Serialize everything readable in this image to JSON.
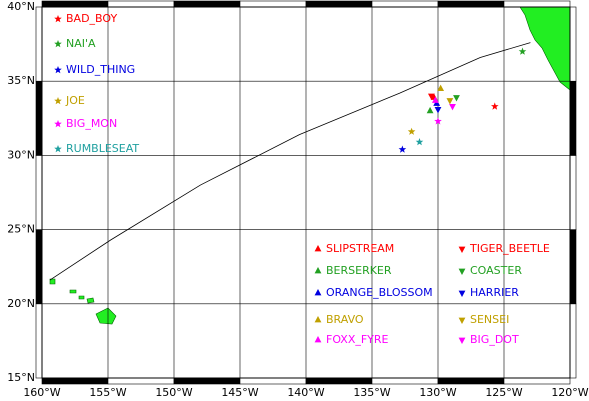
{
  "chart_data": {
    "type": "map",
    "xlim": [
      -160,
      -120
    ],
    "ylim": [
      15,
      40
    ],
    "xticks": [
      {
        "value": -160,
        "label": "160°W"
      },
      {
        "value": -155,
        "label": "155°W"
      },
      {
        "value": -150,
        "label": "150°W"
      },
      {
        "value": -145,
        "label": "145°W"
      },
      {
        "value": -140,
        "label": "140°W"
      },
      {
        "value": -135,
        "label": "135°W"
      },
      {
        "value": -130,
        "label": "130°W"
      },
      {
        "value": -125,
        "label": "125°W"
      },
      {
        "value": -120,
        "label": "120°W"
      }
    ],
    "yticks": [
      {
        "value": 15,
        "label": "15°N"
      },
      {
        "value": 20,
        "label": "20°N"
      },
      {
        "value": 25,
        "label": "25°N"
      },
      {
        "value": 30,
        "label": "30°N"
      },
      {
        "value": 35,
        "label": "35°N"
      },
      {
        "value": 40,
        "label": "40°N"
      }
    ],
    "grid": true,
    "route": {
      "x": [
        -159.4,
        -154.8,
        -148.0,
        -140.5,
        -132.9,
        -126.8,
        -123.0
      ],
      "y": [
        21.6,
        24.3,
        28.0,
        31.4,
        34.2,
        36.6,
        37.6
      ]
    },
    "series": [
      {
        "name": "BAD_BOY",
        "color": "#ff0000",
        "marker": "star",
        "x": -125.7,
        "y": 33.3
      },
      {
        "name": "NAI'A",
        "color": "#22a022",
        "marker": "star",
        "x": -123.6,
        "y": 37.0
      },
      {
        "name": "WILD_THING",
        "color": "#0000e0",
        "marker": "star",
        "x": -132.7,
        "y": 30.4
      },
      {
        "name": "JOE",
        "color": "#c0a000",
        "marker": "star",
        "x": -132.0,
        "y": 31.6
      },
      {
        "name": "BIG_MON",
        "color": "#ff00ff",
        "marker": "star",
        "x": -130.0,
        "y": 32.3
      },
      {
        "name": "RUMBLESEAT",
        "color": "#20a0a0",
        "marker": "star",
        "x": -131.4,
        "y": 30.9
      },
      {
        "name": "SLIPSTREAM",
        "color": "#ff0000",
        "marker": "triangle-up",
        "x": -130.3,
        "y": 33.9
      },
      {
        "name": "BERSERKER",
        "color": "#22a022",
        "marker": "triangle-up",
        "x": -130.6,
        "y": 33.0
      },
      {
        "name": "ORANGE_BLOSSOM",
        "color": "#0000e0",
        "marker": "triangle-up",
        "x": -130.1,
        "y": 33.5
      },
      {
        "name": "BRAVO",
        "color": "#c0a000",
        "marker": "triangle-up",
        "x": -129.8,
        "y": 34.5
      },
      {
        "name": "FOXX_FYRE",
        "color": "#ff00ff",
        "marker": "triangle-up",
        "x": -130.2,
        "y": 33.7
      },
      {
        "name": "TIGER_BEETLE",
        "color": "#ff0000",
        "marker": "triangle-down",
        "x": -130.5,
        "y": 34.0
      },
      {
        "name": "COASTER",
        "color": "#22a022",
        "marker": "triangle-down",
        "x": -128.6,
        "y": 33.9
      },
      {
        "name": "HARRIER",
        "color": "#0000e0",
        "marker": "triangle-down",
        "x": -130.0,
        "y": 33.1
      },
      {
        "name": "SENSEI",
        "color": "#c0a000",
        "marker": "triangle-down",
        "x": -129.1,
        "y": 33.7
      },
      {
        "name": "BIG_DOT",
        "color": "#ff00ff",
        "marker": "triangle-down",
        "x": -128.9,
        "y": 33.3
      }
    ]
  }
}
